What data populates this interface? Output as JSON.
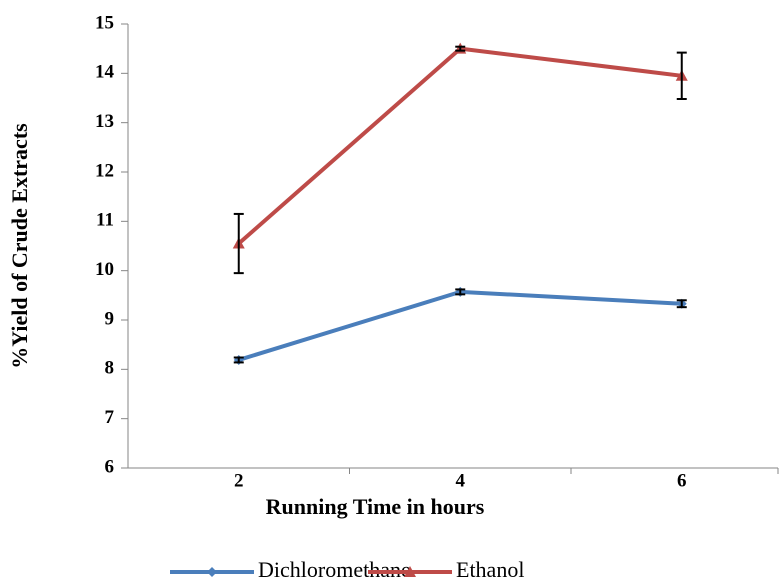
{
  "chart_data": {
    "type": "line",
    "x_label": "Running Time in hours",
    "y_label": "%Yield of  Crude Extracts",
    "categories": [
      "2",
      "4",
      "6"
    ],
    "series": [
      {
        "name": "Dichloromethane",
        "color": "#4a7ebb",
        "marker": "diamond",
        "values": [
          8.19,
          9.57,
          9.33
        ],
        "errors": [
          0.05,
          0.05,
          0.07
        ]
      },
      {
        "name": "Ethanol",
        "color": "#be4b48",
        "marker": "triangle",
        "values": [
          10.55,
          14.5,
          13.95
        ],
        "errors": [
          0.6,
          0.04,
          0.47
        ]
      }
    ],
    "ylim": [
      6,
      15
    ],
    "yticks": [
      6,
      7,
      8,
      9,
      10,
      11,
      12,
      13,
      14,
      15
    ],
    "grid": false,
    "legend": "bottom"
  }
}
